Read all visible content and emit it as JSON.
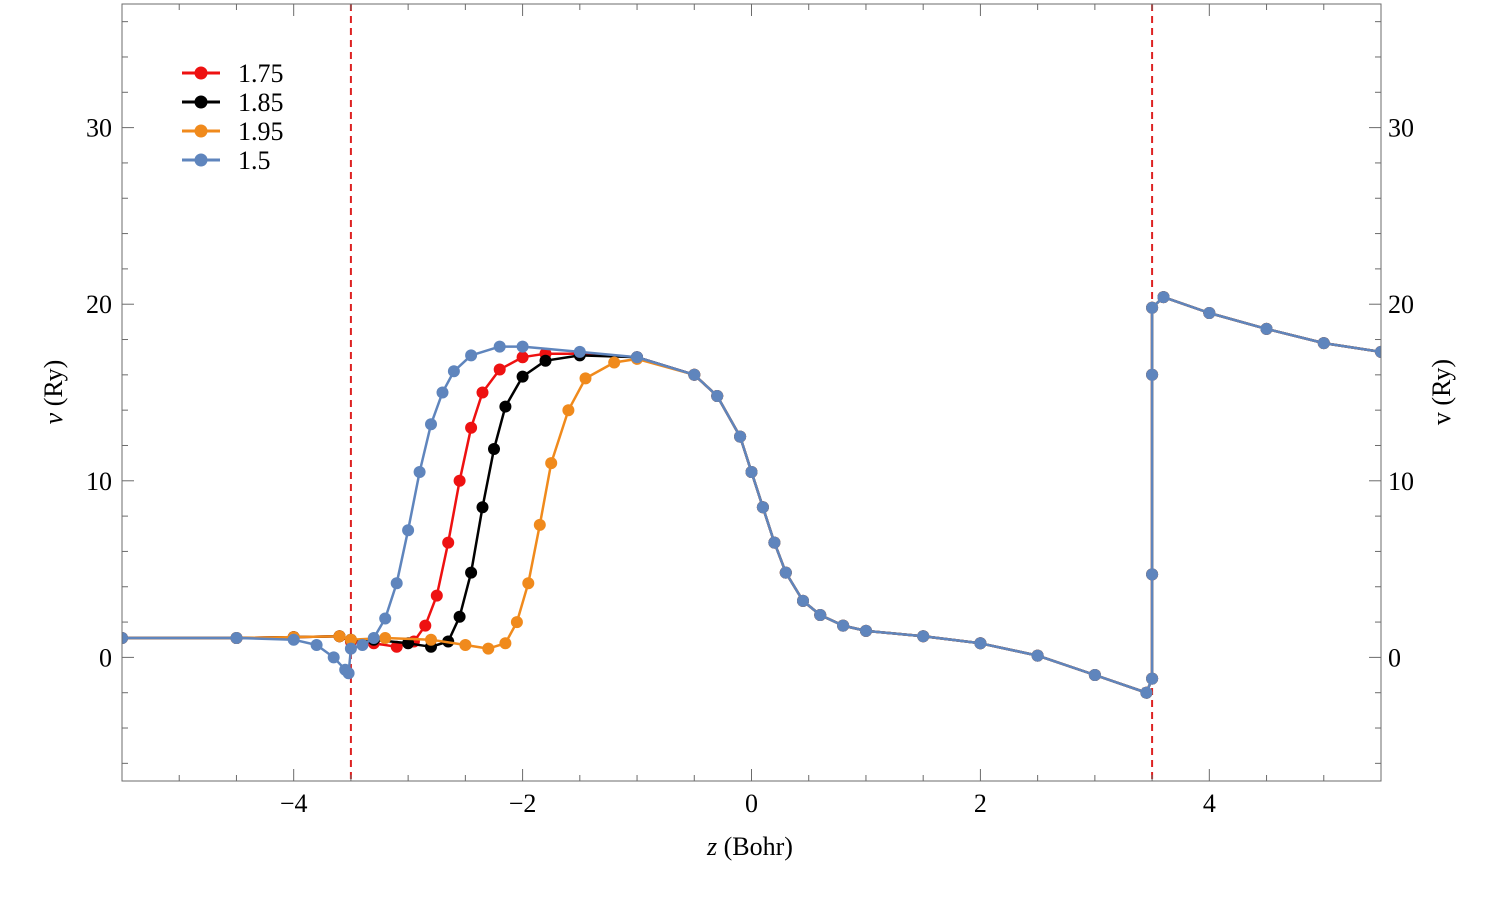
{
  "chart_data": {
    "type": "line",
    "xlabel_var": "z",
    "xlabel_unit": "(Bohr)",
    "ylabel_var": "v",
    "ylabel_unit": "(Ry)",
    "xlim": [
      -5.5,
      5.5
    ],
    "ylim": [
      -7,
      37
    ],
    "x_ticks": [
      -4,
      -2,
      0,
      2,
      4
    ],
    "x_tick_labels": [
      "−4",
      "−2",
      "0",
      "2",
      "4"
    ],
    "y_ticks": [
      0,
      10,
      20,
      30
    ],
    "y_tick_labels": [
      "0",
      "10",
      "20",
      "30"
    ],
    "grid": false,
    "legend_position": "top-left",
    "reference_lines": [
      {
        "x": -3.5,
        "color": "#dd2222",
        "style": "dashed"
      },
      {
        "x": 3.5,
        "color": "#dd2222",
        "style": "dashed"
      }
    ],
    "series": [
      {
        "name": "1.75",
        "color": "#ee1111",
        "points": [
          [
            -5.5,
            1.1
          ],
          [
            -4.5,
            1.1
          ],
          [
            -4.0,
            1.15
          ],
          [
            -3.6,
            1.2
          ],
          [
            -3.5,
            0.9
          ],
          [
            -3.3,
            0.8
          ],
          [
            -3.1,
            0.6
          ],
          [
            -2.95,
            0.9
          ],
          [
            -2.85,
            1.8
          ],
          [
            -2.75,
            3.5
          ],
          [
            -2.65,
            6.5
          ],
          [
            -2.55,
            10.0
          ],
          [
            -2.45,
            13.0
          ],
          [
            -2.35,
            15.0
          ],
          [
            -2.2,
            16.3
          ],
          [
            -2.0,
            17.0
          ],
          [
            -1.8,
            17.2
          ],
          [
            -1.5,
            17.2
          ],
          [
            -1.0,
            17.0
          ],
          [
            -0.5,
            16.0
          ],
          [
            -0.3,
            14.8
          ],
          [
            -0.1,
            12.5
          ],
          [
            0.0,
            10.5
          ],
          [
            0.1,
            8.5
          ],
          [
            0.2,
            6.5
          ],
          [
            0.3,
            4.8
          ],
          [
            0.45,
            3.2
          ],
          [
            0.6,
            2.4
          ],
          [
            0.8,
            1.8
          ],
          [
            1.0,
            1.5
          ],
          [
            1.5,
            1.2
          ],
          [
            2.0,
            0.8
          ],
          [
            2.5,
            0.1
          ],
          [
            3.0,
            -1.0
          ],
          [
            3.45,
            -2.0
          ],
          [
            3.5,
            -1.2
          ],
          [
            3.5,
            4.7
          ],
          [
            3.5,
            16.0
          ],
          [
            3.5,
            19.8
          ],
          [
            3.6,
            20.4
          ],
          [
            4.0,
            19.5
          ],
          [
            4.5,
            18.6
          ],
          [
            5.0,
            17.8
          ],
          [
            5.5,
            17.3
          ]
        ]
      },
      {
        "name": "1.85",
        "color": "#000000",
        "points": [
          [
            -5.5,
            1.1
          ],
          [
            -4.5,
            1.1
          ],
          [
            -4.0,
            1.15
          ],
          [
            -3.6,
            1.2
          ],
          [
            -3.5,
            1.0
          ],
          [
            -3.3,
            1.0
          ],
          [
            -3.0,
            0.8
          ],
          [
            -2.8,
            0.6
          ],
          [
            -2.65,
            0.9
          ],
          [
            -2.55,
            2.3
          ],
          [
            -2.45,
            4.8
          ],
          [
            -2.35,
            8.5
          ],
          [
            -2.25,
            11.8
          ],
          [
            -2.15,
            14.2
          ],
          [
            -2.0,
            15.9
          ],
          [
            -1.8,
            16.8
          ],
          [
            -1.5,
            17.1
          ],
          [
            -1.0,
            17.0
          ],
          [
            -0.5,
            16.0
          ],
          [
            -0.3,
            14.8
          ],
          [
            -0.1,
            12.5
          ],
          [
            0.0,
            10.5
          ],
          [
            0.1,
            8.5
          ],
          [
            0.2,
            6.5
          ],
          [
            0.3,
            4.8
          ],
          [
            0.45,
            3.2
          ],
          [
            0.6,
            2.4
          ],
          [
            0.8,
            1.8
          ],
          [
            1.0,
            1.5
          ],
          [
            1.5,
            1.2
          ],
          [
            2.0,
            0.8
          ],
          [
            2.5,
            0.1
          ],
          [
            3.0,
            -1.0
          ],
          [
            3.45,
            -2.0
          ],
          [
            3.5,
            -1.2
          ],
          [
            3.5,
            4.7
          ],
          [
            3.5,
            16.0
          ],
          [
            3.5,
            19.8
          ],
          [
            3.6,
            20.4
          ],
          [
            4.0,
            19.5
          ],
          [
            4.5,
            18.6
          ],
          [
            5.0,
            17.8
          ],
          [
            5.5,
            17.3
          ]
        ]
      },
      {
        "name": "1.95",
        "color": "#f08a1c",
        "points": [
          [
            -5.5,
            1.1
          ],
          [
            -4.5,
            1.1
          ],
          [
            -4.0,
            1.15
          ],
          [
            -3.6,
            1.2
          ],
          [
            -3.5,
            1.0
          ],
          [
            -3.2,
            1.1
          ],
          [
            -2.8,
            1.0
          ],
          [
            -2.5,
            0.7
          ],
          [
            -2.3,
            0.5
          ],
          [
            -2.15,
            0.8
          ],
          [
            -2.05,
            2.0
          ],
          [
            -1.95,
            4.2
          ],
          [
            -1.85,
            7.5
          ],
          [
            -1.75,
            11.0
          ],
          [
            -1.6,
            14.0
          ],
          [
            -1.45,
            15.8
          ],
          [
            -1.2,
            16.7
          ],
          [
            -1.0,
            16.9
          ],
          [
            -0.5,
            16.0
          ],
          [
            -0.3,
            14.8
          ],
          [
            -0.1,
            12.5
          ],
          [
            0.0,
            10.5
          ],
          [
            0.1,
            8.5
          ],
          [
            0.2,
            6.5
          ],
          [
            0.3,
            4.8
          ],
          [
            0.45,
            3.2
          ],
          [
            0.6,
            2.4
          ],
          [
            0.8,
            1.8
          ],
          [
            1.0,
            1.5
          ],
          [
            1.5,
            1.2
          ],
          [
            2.0,
            0.8
          ],
          [
            2.5,
            0.1
          ],
          [
            3.0,
            -1.0
          ],
          [
            3.45,
            -2.0
          ],
          [
            3.5,
            -1.2
          ],
          [
            3.5,
            4.7
          ],
          [
            3.5,
            16.0
          ],
          [
            3.5,
            19.8
          ],
          [
            3.6,
            20.4
          ],
          [
            4.0,
            19.5
          ],
          [
            4.5,
            18.6
          ],
          [
            5.0,
            17.8
          ],
          [
            5.5,
            17.3
          ]
        ]
      },
      {
        "name": "1.5",
        "color": "#5f85bd",
        "points": [
          [
            -5.5,
            1.1
          ],
          [
            -4.5,
            1.1
          ],
          [
            -4.0,
            1.0
          ],
          [
            -3.8,
            0.7
          ],
          [
            -3.65,
            0.0
          ],
          [
            -3.55,
            -0.7
          ],
          [
            -3.52,
            -0.9
          ],
          [
            -3.5,
            0.5
          ],
          [
            -3.4,
            0.7
          ],
          [
            -3.3,
            1.1
          ],
          [
            -3.2,
            2.2
          ],
          [
            -3.1,
            4.2
          ],
          [
            -3.0,
            7.2
          ],
          [
            -2.9,
            10.5
          ],
          [
            -2.8,
            13.2
          ],
          [
            -2.7,
            15.0
          ],
          [
            -2.6,
            16.2
          ],
          [
            -2.45,
            17.1
          ],
          [
            -2.2,
            17.6
          ],
          [
            -2.0,
            17.6
          ],
          [
            -1.5,
            17.3
          ],
          [
            -1.0,
            17.0
          ],
          [
            -0.5,
            16.0
          ],
          [
            -0.3,
            14.8
          ],
          [
            -0.1,
            12.5
          ],
          [
            0.0,
            10.5
          ],
          [
            0.1,
            8.5
          ],
          [
            0.2,
            6.5
          ],
          [
            0.3,
            4.8
          ],
          [
            0.45,
            3.2
          ],
          [
            0.6,
            2.4
          ],
          [
            0.8,
            1.8
          ],
          [
            1.0,
            1.5
          ],
          [
            1.5,
            1.2
          ],
          [
            2.0,
            0.8
          ],
          [
            2.5,
            0.1
          ],
          [
            3.0,
            -1.0
          ],
          [
            3.45,
            -2.0
          ],
          [
            3.5,
            -1.2
          ],
          [
            3.5,
            4.7
          ],
          [
            3.5,
            16.0
          ],
          [
            3.5,
            19.8
          ],
          [
            3.6,
            20.4
          ],
          [
            4.0,
            19.5
          ],
          [
            4.5,
            18.6
          ],
          [
            5.0,
            17.8
          ],
          [
            5.5,
            17.3
          ]
        ]
      }
    ]
  }
}
